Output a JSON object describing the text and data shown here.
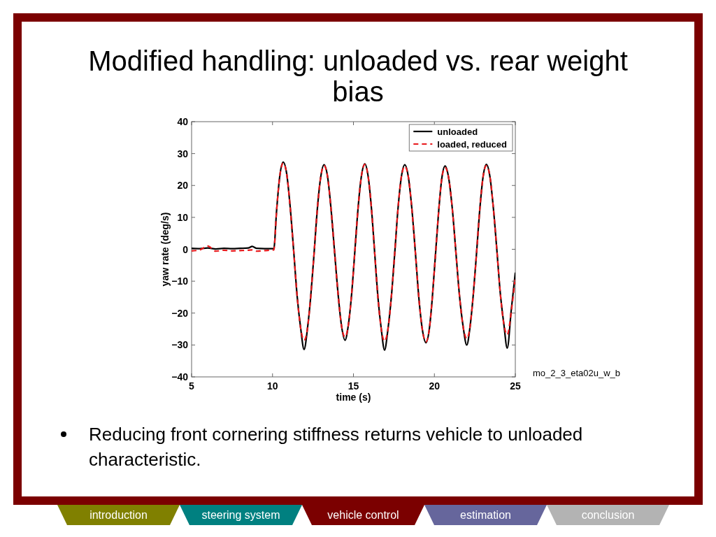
{
  "chart_data": {
    "type": "line",
    "title": "Modified handling: unloaded vs. rear weight bias",
    "xlabel": "time (s)",
    "ylabel": "yaw rate (deg/s)",
    "x": [
      5,
      5.5,
      6,
      6.5,
      7,
      7.5,
      8,
      8.5,
      8.75,
      9,
      9.5,
      10.08,
      10.25,
      10.45,
      10.66,
      10.88,
      11.09,
      11.31,
      11.52,
      11.74,
      11.95,
      12.16,
      12.36,
      12.57,
      12.77,
      12.98,
      13.18,
      13.4,
      13.61,
      13.83,
      14.05,
      14.26,
      14.48,
      14.68,
      14.89,
      15.09,
      15.29,
      15.5,
      15.7,
      15.9,
      16.11,
      16.31,
      16.51,
      16.72,
      16.92,
      17.13,
      17.34,
      17.55,
      17.75,
      17.96,
      18.17,
      18.39,
      18.61,
      18.83,
      19.04,
      19.26,
      19.48,
      19.68,
      19.87,
      20.07,
      20.27,
      20.46,
      20.66,
      20.88,
      21.11,
      21.33,
      21.55,
      21.78,
      22.0,
      22.2,
      22.4,
      22.61,
      22.81,
      23.01,
      23.21,
      23.43,
      23.64,
      23.86,
      24.07,
      24.29,
      24.5,
      24.75,
      25
    ],
    "series": [
      {
        "name": "unloaded",
        "color": "#000000",
        "line_style": "solid",
        "values": [
          0.3,
          0.2,
          0.4,
          0.1,
          0.3,
          0.2,
          0.3,
          0.4,
          0.9,
          0.3,
          0.2,
          0.2,
          12,
          23,
          27.3,
          23.5,
          13.3,
          -0.7,
          -14.6,
          -24.8,
          -31.4,
          -24.8,
          -14.8,
          -1.1,
          12.7,
          22.7,
          26.5,
          22.8,
          12.9,
          -0.6,
          -14.0,
          -23.9,
          -28.5,
          -23.9,
          -13.9,
          -0.4,
          13.2,
          23.2,
          26.8,
          23.1,
          12.9,
          -1.0,
          -14.9,
          -25.1,
          -31.6,
          -25.1,
          -15.0,
          -1.2,
          12.6,
          22.7,
          26.5,
          22.7,
          12.6,
          -1.3,
          -15.2,
          -25.3,
          -29.3,
          -25.3,
          -15.3,
          -1.5,
          12.3,
          22.3,
          26.1,
          22.4,
          12.5,
          -1.0,
          -14.5,
          -24.4,
          -30.0,
          -24.4,
          -14.4,
          -0.8,
          12.8,
          22.8,
          26.6,
          22.8,
          13.1,
          -0.3,
          -13.7,
          -23.4,
          -31.0,
          -19,
          -7.3
        ]
      },
      {
        "name": "loaded, reduced",
        "color": "#e8191c",
        "line_style": "dashed",
        "values": [
          -0.5,
          -0.2,
          1.0,
          -0.6,
          -0.3,
          -0.5,
          -0.4,
          -0.3,
          -0.2,
          -0.6,
          -0.4,
          -0.2,
          12,
          23,
          27.0,
          23.5,
          13.3,
          -0.7,
          -14.6,
          -24.8,
          -28.5,
          -24.8,
          -14.8,
          -1.1,
          12.7,
          22.7,
          26.2,
          22.8,
          12.9,
          -0.6,
          -14.0,
          -23.9,
          -27.5,
          -23.9,
          -13.9,
          -0.4,
          13.2,
          23.2,
          26.6,
          23.1,
          12.9,
          -1.0,
          -14.9,
          -25.1,
          -28.8,
          -25.1,
          -15.0,
          -1.2,
          12.6,
          22.7,
          26.0,
          22.7,
          12.6,
          -1.3,
          -15.2,
          -25.3,
          -29.0,
          -25.3,
          -15.3,
          -1.5,
          12.3,
          22.3,
          25.6,
          22.4,
          12.5,
          -1.0,
          -14.5,
          -24.4,
          -28.0,
          -24.4,
          -14.4,
          -0.8,
          12.8,
          22.8,
          26.2,
          22.8,
          13.1,
          -0.3,
          -13.7,
          -23.4,
          -26.8,
          -19.5,
          -8.5
        ]
      }
    ],
    "xlim": [
      5,
      25
    ],
    "ylim": [
      -40,
      40
    ],
    "xticks": [
      5,
      10,
      15,
      20,
      25
    ],
    "yticks": [
      {
        "value": -40,
        "label": "−40"
      },
      {
        "value": -30,
        "label": "−30"
      },
      {
        "value": -20,
        "label": "−20"
      },
      {
        "value": -10,
        "label": "−10"
      },
      0,
      10,
      20,
      30,
      40
    ],
    "legend": "top right",
    "annotations": [
      "mo_2_3_eta02u_w_b",
      "Reducing front cornering stiffness returns vehicle to unloaded characteristic.",
      "introduction",
      "steering system",
      "vehicle control",
      "estimation",
      "conclusion"
    ]
  }
}
